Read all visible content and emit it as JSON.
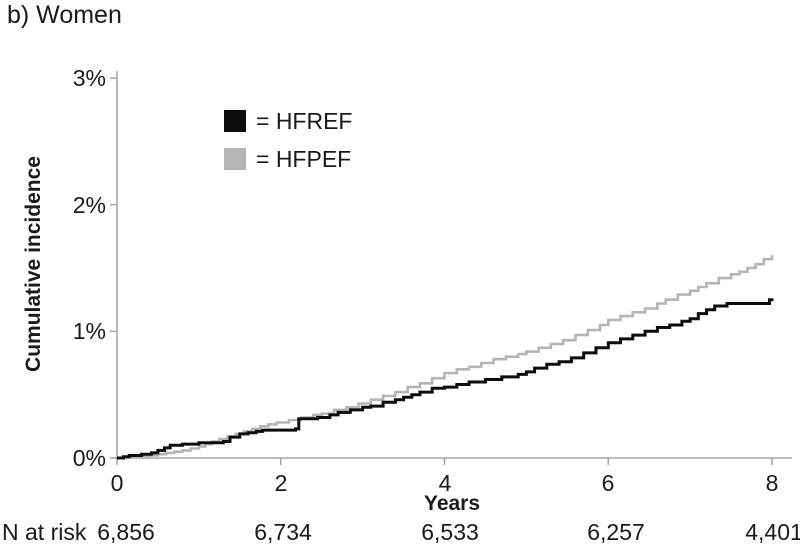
{
  "title": "b) Women",
  "chart_data": {
    "type": "line",
    "line_style": "step",
    "title": "b) Women",
    "xlabel": "Years",
    "ylabel": "Cumulative incidence",
    "xlim": [
      0,
      8
    ],
    "ylim": [
      0,
      3
    ],
    "y_unit": "%",
    "grid": false,
    "legend_position": "inside-top-left",
    "axis_color": "#a6a6a6",
    "x_ticks": [
      0,
      2,
      4,
      6,
      8
    ],
    "x_tick_labels": [
      "0",
      "2",
      "4",
      "6",
      "8"
    ],
    "y_ticks": [
      0,
      1,
      2,
      3
    ],
    "y_tick_labels": [
      "0%",
      "1%",
      "2%",
      "3%"
    ],
    "series": [
      {
        "name": "HFREF",
        "legend_label": "= HFREF",
        "color": "#0d0d0d",
        "line_width": 3,
        "points": [
          [
            0,
            0
          ],
          [
            0.08,
            0.01
          ],
          [
            0.15,
            0.02
          ],
          [
            0.3,
            0.03
          ],
          [
            0.42,
            0.04
          ],
          [
            0.5,
            0.06
          ],
          [
            0.58,
            0.08
          ],
          [
            0.65,
            0.1
          ],
          [
            0.8,
            0.11
          ],
          [
            1.0,
            0.12
          ],
          [
            1.3,
            0.13
          ],
          [
            1.38,
            0.165
          ],
          [
            1.5,
            0.19
          ],
          [
            1.6,
            0.2
          ],
          [
            1.7,
            0.21
          ],
          [
            1.78,
            0.22
          ],
          [
            2.18,
            0.23
          ],
          [
            2.22,
            0.31
          ],
          [
            2.45,
            0.32
          ],
          [
            2.6,
            0.34
          ],
          [
            2.7,
            0.36
          ],
          [
            2.85,
            0.38
          ],
          [
            3.0,
            0.4
          ],
          [
            3.1,
            0.41
          ],
          [
            3.25,
            0.44
          ],
          [
            3.4,
            0.46
          ],
          [
            3.5,
            0.48
          ],
          [
            3.6,
            0.5
          ],
          [
            3.7,
            0.52
          ],
          [
            3.85,
            0.55
          ],
          [
            4.0,
            0.56
          ],
          [
            4.15,
            0.58
          ],
          [
            4.3,
            0.6
          ],
          [
            4.5,
            0.62
          ],
          [
            4.7,
            0.64
          ],
          [
            4.9,
            0.66
          ],
          [
            5.0,
            0.68
          ],
          [
            5.1,
            0.71
          ],
          [
            5.25,
            0.74
          ],
          [
            5.4,
            0.76
          ],
          [
            5.55,
            0.79
          ],
          [
            5.7,
            0.83
          ],
          [
            5.85,
            0.87
          ],
          [
            6.0,
            0.91
          ],
          [
            6.15,
            0.94
          ],
          [
            6.3,
            0.97
          ],
          [
            6.45,
            1.0
          ],
          [
            6.6,
            1.03
          ],
          [
            6.75,
            1.05
          ],
          [
            6.9,
            1.08
          ],
          [
            7.0,
            1.1
          ],
          [
            7.1,
            1.14
          ],
          [
            7.2,
            1.17
          ],
          [
            7.3,
            1.2
          ],
          [
            7.45,
            1.22
          ],
          [
            7.92,
            1.22
          ],
          [
            7.97,
            1.25
          ],
          [
            8.0,
            1.26
          ]
        ]
      },
      {
        "name": "HFPEF",
        "legend_label": "= HFPEF",
        "color": "#b5b5b5",
        "line_width": 2.6,
        "points": [
          [
            0,
            0
          ],
          [
            0.12,
            0.005
          ],
          [
            0.25,
            0.01
          ],
          [
            0.4,
            0.02
          ],
          [
            0.5,
            0.03
          ],
          [
            0.6,
            0.04
          ],
          [
            0.7,
            0.05
          ],
          [
            0.8,
            0.06
          ],
          [
            0.9,
            0.075
          ],
          [
            1.0,
            0.09
          ],
          [
            1.08,
            0.11
          ],
          [
            1.16,
            0.13
          ],
          [
            1.25,
            0.15
          ],
          [
            1.35,
            0.17
          ],
          [
            1.45,
            0.19
          ],
          [
            1.55,
            0.21
          ],
          [
            1.65,
            0.23
          ],
          [
            1.75,
            0.25
          ],
          [
            1.85,
            0.265
          ],
          [
            1.95,
            0.28
          ],
          [
            2.1,
            0.3
          ],
          [
            2.25,
            0.32
          ],
          [
            2.4,
            0.34
          ],
          [
            2.5,
            0.35
          ],
          [
            2.65,
            0.38
          ],
          [
            2.8,
            0.4
          ],
          [
            2.95,
            0.43
          ],
          [
            3.1,
            0.46
          ],
          [
            3.25,
            0.49
          ],
          [
            3.4,
            0.52
          ],
          [
            3.55,
            0.56
          ],
          [
            3.7,
            0.59
          ],
          [
            3.85,
            0.63
          ],
          [
            4.0,
            0.67
          ],
          [
            4.15,
            0.7
          ],
          [
            4.3,
            0.72
          ],
          [
            4.45,
            0.75
          ],
          [
            4.6,
            0.78
          ],
          [
            4.75,
            0.8
          ],
          [
            4.9,
            0.82
          ],
          [
            5.0,
            0.84
          ],
          [
            5.15,
            0.87
          ],
          [
            5.3,
            0.9
          ],
          [
            5.45,
            0.93
          ],
          [
            5.6,
            0.97
          ],
          [
            5.75,
            1.01
          ],
          [
            5.9,
            1.05
          ],
          [
            6.0,
            1.09
          ],
          [
            6.15,
            1.12
          ],
          [
            6.3,
            1.15
          ],
          [
            6.45,
            1.18
          ],
          [
            6.6,
            1.22
          ],
          [
            6.7,
            1.25
          ],
          [
            6.85,
            1.29
          ],
          [
            7.0,
            1.32
          ],
          [
            7.1,
            1.35
          ],
          [
            7.2,
            1.38
          ],
          [
            7.35,
            1.42
          ],
          [
            7.5,
            1.45
          ],
          [
            7.6,
            1.47
          ],
          [
            7.7,
            1.5
          ],
          [
            7.8,
            1.53
          ],
          [
            7.9,
            1.57
          ],
          [
            8.0,
            1.6
          ]
        ]
      }
    ],
    "n_at_risk": {
      "label": "N at risk",
      "values": [
        "6,856",
        "6,734",
        "6,533",
        "6,257",
        "4,401"
      ]
    }
  }
}
